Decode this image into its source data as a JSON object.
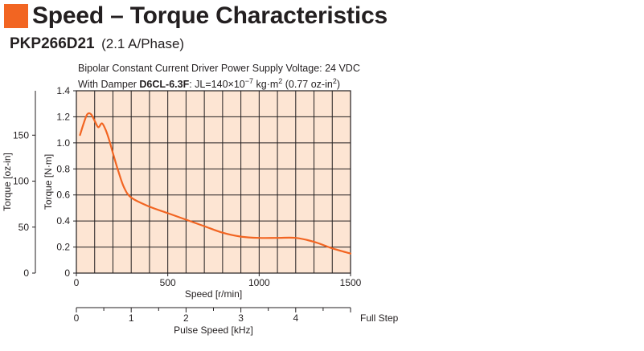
{
  "header": {
    "title": "Speed – Torque Characteristics",
    "accent_color": "#f26522"
  },
  "model": {
    "name": "PKP266D21",
    "spec": "(2.1 A/Phase)"
  },
  "conditions": {
    "line1": "Bipolar Constant Current Driver  Power Supply Voltage: 24 VDC",
    "line2_prefix": "With Damper ",
    "damper": "D6CL-6.3F",
    "line2_suffix": ": JL=140×10",
    "exponent": "−7",
    "unit": " kg·m",
    "unit_exponent": "2",
    "tail": " (0.77 oz-in",
    "tail_exponent": "2",
    "tail_end": ")"
  },
  "chart_data": {
    "type": "line",
    "xlabel": "Speed [r/min]",
    "ylabel": "Torque [N·m]",
    "ylabel_secondary": "Torque [oz-in]",
    "x2label": "Pulse Speed [kHz]",
    "x2_end_label": "Full Step",
    "xlim": [
      0,
      1500
    ],
    "ylim": [
      0,
      1.4
    ],
    "y2lim": [
      0,
      198.3
    ],
    "x2lim": [
      0,
      5
    ],
    "x_ticks": [
      0,
      500,
      1000,
      1500
    ],
    "y_ticks": [
      0,
      0.2,
      0.4,
      0.6,
      0.8,
      1.0,
      1.2,
      1.4
    ],
    "y_tick_labels": [
      "0",
      "0.2",
      "0.4",
      "0.6",
      "0.8",
      "1.0",
      "1.2",
      "1.4"
    ],
    "y2_ticks": [
      0,
      50,
      100,
      150
    ],
    "x2_ticks": [
      0,
      1,
      2,
      3,
      4
    ],
    "grid": true,
    "x_grid_step": 100,
    "y_grid_step": 0.2,
    "plot_bg": "#fde5d3",
    "line_color": "#f26522",
    "series": [
      {
        "x": [
          20,
          40,
          60,
          80,
          100,
          120,
          140,
          160,
          180,
          200,
          230,
          260,
          300,
          400,
          500,
          600,
          700,
          800,
          900,
          1000,
          1100,
          1200,
          1300,
          1400,
          1500
        ],
        "values": [
          1.06,
          1.15,
          1.22,
          1.22,
          1.17,
          1.12,
          1.15,
          1.1,
          1.02,
          0.92,
          0.78,
          0.66,
          0.58,
          0.51,
          0.46,
          0.41,
          0.36,
          0.31,
          0.28,
          0.27,
          0.27,
          0.27,
          0.24,
          0.19,
          0.15
        ]
      }
    ]
  }
}
